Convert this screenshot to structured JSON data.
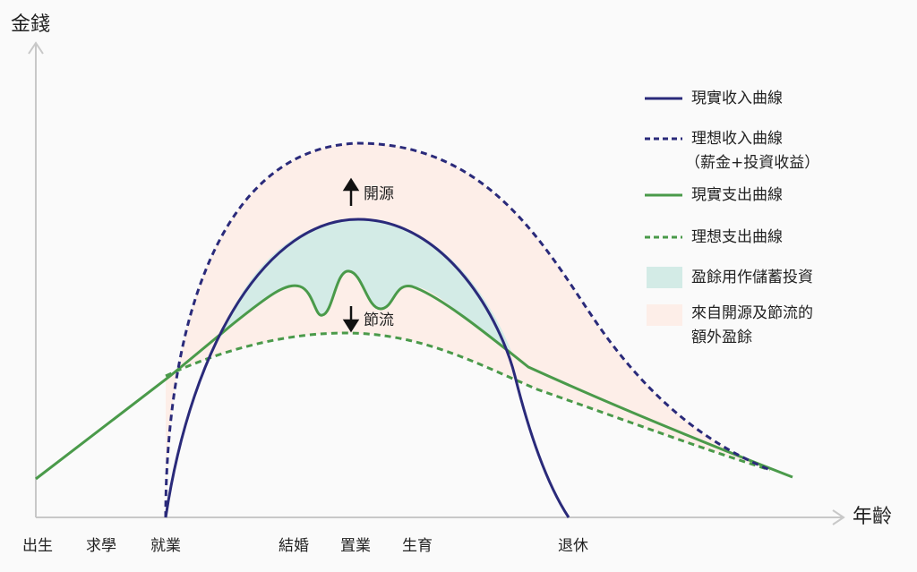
{
  "axes": {
    "y_label": "金錢",
    "x_label": "年齡"
  },
  "stages": [
    "出生",
    "求學",
    "就業",
    "結婚",
    "置業",
    "生育",
    "退休"
  ],
  "annotations": {
    "increase": "開源",
    "reduce": "節流"
  },
  "legend": [
    {
      "lines": [
        "現實收入曲線"
      ]
    },
    {
      "lines": [
        "理想收入曲線",
        "（薪金+投資收益）"
      ]
    },
    {
      "lines": [
        "現實支出曲線"
      ]
    },
    {
      "lines": [
        "理想支出曲線"
      ]
    },
    {
      "lines": [
        "盈餘用作儲蓄投資"
      ]
    },
    {
      "lines": [
        "來自開源及節流的",
        "額外盈餘"
      ]
    }
  ]
}
